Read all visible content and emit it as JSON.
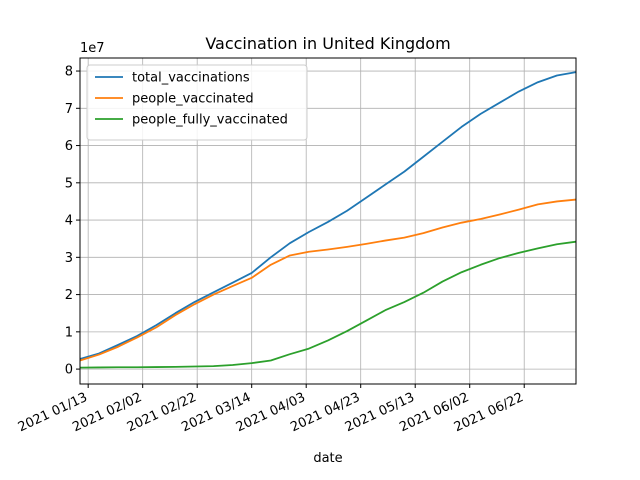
{
  "chart_data": {
    "type": "line",
    "title": "Vaccination in United Kingdom",
    "xlabel": "date",
    "ylabel": "",
    "y_scale_label": "1e7",
    "xlim": [
      "2021-01-10",
      "2021-07-11"
    ],
    "ylim": [
      -0.4,
      8.35
    ],
    "x_ticks": [
      "2021-01-13",
      "2021-02-02",
      "2021-02-22",
      "2021-03-14",
      "2021-04-03",
      "2021-04-23",
      "2021-05-13",
      "2021-06-02",
      "2021-06-22"
    ],
    "x_tick_labels": [
      "2021 01/13",
      "2021 02/02",
      "2021 02/22",
      "2021 03/14",
      "2021 04/03",
      "2021 04/23",
      "2021 05/13",
      "2021 06/02",
      "2021 06/22"
    ],
    "y_ticks": [
      0,
      1,
      2,
      3,
      4,
      5,
      6,
      7,
      8
    ],
    "grid": true,
    "legend_position": "upper left",
    "series": [
      {
        "name": "total_vaccinations",
        "color": "#1f77b4",
        "points": [
          [
            "2021-01-10",
            0.27
          ],
          [
            "2021-01-17",
            0.42
          ],
          [
            "2021-01-24",
            0.65
          ],
          [
            "2021-01-31",
            0.89
          ],
          [
            "2021-02-07",
            1.18
          ],
          [
            "2021-02-14",
            1.5
          ],
          [
            "2021-02-21",
            1.8
          ],
          [
            "2021-02-28",
            2.06
          ],
          [
            "2021-03-07",
            2.32
          ],
          [
            "2021-03-14",
            2.58
          ],
          [
            "2021-03-21",
            3.0
          ],
          [
            "2021-03-28",
            3.38
          ],
          [
            "2021-04-04",
            3.68
          ],
          [
            "2021-04-11",
            3.95
          ],
          [
            "2021-04-18",
            4.25
          ],
          [
            "2021-04-25",
            4.6
          ],
          [
            "2021-05-02",
            4.95
          ],
          [
            "2021-05-09",
            5.3
          ],
          [
            "2021-05-16",
            5.7
          ],
          [
            "2021-05-23",
            6.1
          ],
          [
            "2021-05-30",
            6.5
          ],
          [
            "2021-06-06",
            6.85
          ],
          [
            "2021-06-13",
            7.15
          ],
          [
            "2021-06-20",
            7.45
          ],
          [
            "2021-06-27",
            7.7
          ],
          [
            "2021-07-04",
            7.88
          ],
          [
            "2021-07-11",
            7.97
          ]
        ]
      },
      {
        "name": "people_vaccinated",
        "color": "#ff7f0e",
        "points": [
          [
            "2021-01-10",
            0.23
          ],
          [
            "2021-01-17",
            0.39
          ],
          [
            "2021-01-24",
            0.6
          ],
          [
            "2021-01-31",
            0.85
          ],
          [
            "2021-02-07",
            1.12
          ],
          [
            "2021-02-14",
            1.45
          ],
          [
            "2021-02-21",
            1.74
          ],
          [
            "2021-02-28",
            2.0
          ],
          [
            "2021-03-07",
            2.23
          ],
          [
            "2021-03-14",
            2.45
          ],
          [
            "2021-03-21",
            2.8
          ],
          [
            "2021-03-28",
            3.05
          ],
          [
            "2021-04-04",
            3.15
          ],
          [
            "2021-04-11",
            3.21
          ],
          [
            "2021-04-18",
            3.28
          ],
          [
            "2021-04-25",
            3.36
          ],
          [
            "2021-05-02",
            3.45
          ],
          [
            "2021-05-09",
            3.53
          ],
          [
            "2021-05-16",
            3.65
          ],
          [
            "2021-05-23",
            3.8
          ],
          [
            "2021-05-30",
            3.93
          ],
          [
            "2021-06-06",
            4.03
          ],
          [
            "2021-06-13",
            4.15
          ],
          [
            "2021-06-20",
            4.28
          ],
          [
            "2021-06-27",
            4.42
          ],
          [
            "2021-07-04",
            4.5
          ],
          [
            "2021-07-11",
            4.55
          ]
        ]
      },
      {
        "name": "people_fully_vaccinated",
        "color": "#2ca02c",
        "points": [
          [
            "2021-01-10",
            0.04
          ],
          [
            "2021-01-17",
            0.045
          ],
          [
            "2021-01-24",
            0.05
          ],
          [
            "2021-01-31",
            0.05
          ],
          [
            "2021-02-07",
            0.055
          ],
          [
            "2021-02-14",
            0.06
          ],
          [
            "2021-02-21",
            0.07
          ],
          [
            "2021-02-28",
            0.08
          ],
          [
            "2021-03-07",
            0.11
          ],
          [
            "2021-03-14",
            0.16
          ],
          [
            "2021-03-21",
            0.23
          ],
          [
            "2021-03-28",
            0.4
          ],
          [
            "2021-04-04",
            0.55
          ],
          [
            "2021-04-11",
            0.77
          ],
          [
            "2021-04-18",
            1.02
          ],
          [
            "2021-04-25",
            1.3
          ],
          [
            "2021-05-02",
            1.58
          ],
          [
            "2021-05-09",
            1.8
          ],
          [
            "2021-05-16",
            2.05
          ],
          [
            "2021-05-23",
            2.35
          ],
          [
            "2021-05-30",
            2.6
          ],
          [
            "2021-06-06",
            2.8
          ],
          [
            "2021-06-13",
            2.98
          ],
          [
            "2021-06-20",
            3.12
          ],
          [
            "2021-06-27",
            3.24
          ],
          [
            "2021-07-04",
            3.35
          ],
          [
            "2021-07-11",
            3.42
          ]
        ]
      }
    ]
  }
}
